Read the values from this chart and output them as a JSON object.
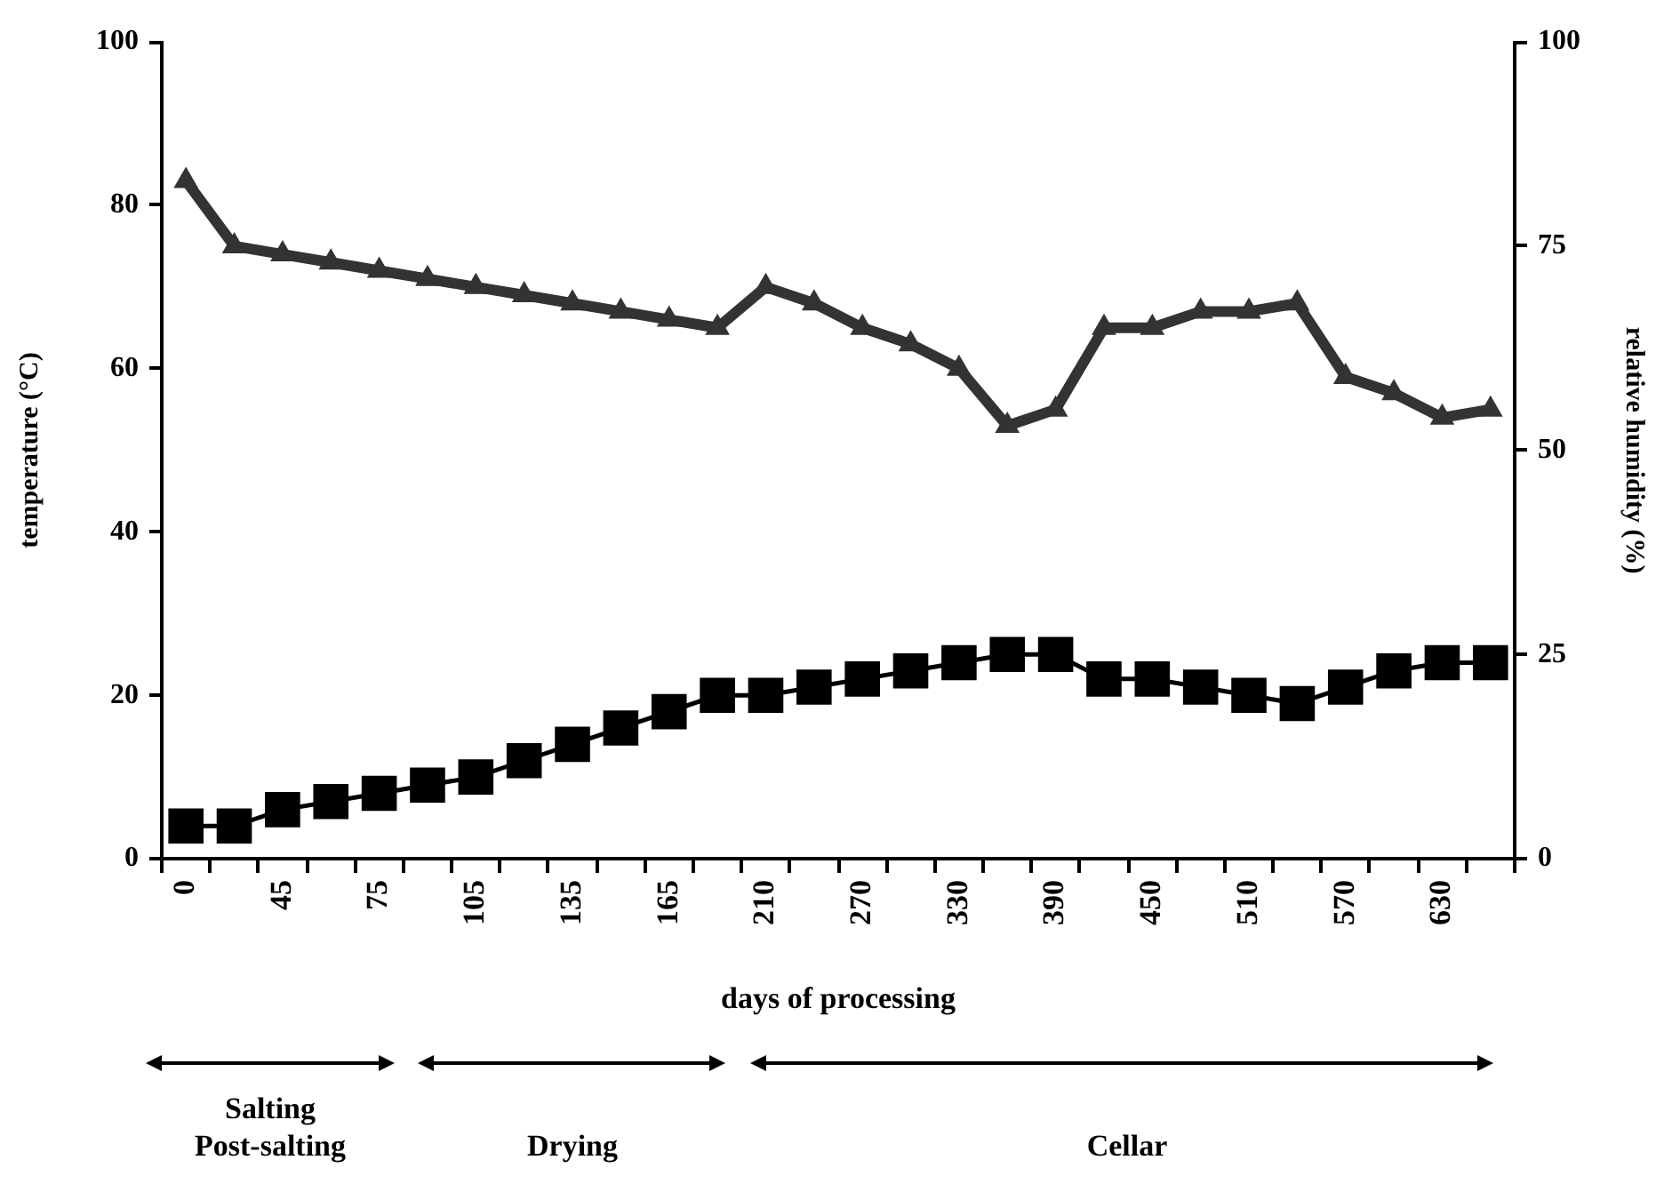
{
  "chart_data": {
    "type": "line",
    "xlabel": "days of processing",
    "ylabel": "temperature (°C)",
    "y2label": "relative humidity (%)",
    "categories": [
      "0",
      null,
      "45",
      null,
      "75",
      null,
      "105",
      null,
      "135",
      null,
      "165",
      null,
      "210",
      null,
      "270",
      null,
      "330",
      null,
      "390",
      null,
      "450",
      null,
      "510",
      null,
      "570",
      null,
      "630",
      null
    ],
    "series": [
      {
        "color": "#333333",
        "marker": "triangle",
        "axis": "y2",
        "values": [
          83,
          75,
          74,
          73,
          72,
          71,
          70,
          69,
          68,
          67,
          66,
          65,
          70,
          68,
          65,
          63,
          60,
          53,
          55,
          65,
          65,
          67,
          67,
          68,
          59,
          57,
          54,
          55
        ]
      },
      {
        "color": "#000000",
        "marker": "square",
        "values": [
          4,
          4,
          6,
          7,
          8,
          9,
          10,
          12,
          14,
          16,
          18,
          20,
          20,
          21,
          22,
          23,
          24,
          25,
          25,
          22,
          22,
          21,
          20,
          19,
          21,
          23,
          24,
          24
        ]
      }
    ],
    "ylim": [
      0,
      100
    ],
    "yticks": [
      0,
      20,
      40,
      60,
      80,
      100
    ],
    "y2lim": [
      0,
      100
    ],
    "y2ticks": [
      0,
      25,
      50,
      75,
      100
    ],
    "annotations": [
      "Salting\nPost-salting",
      "Drying",
      "Cellar"
    ]
  }
}
